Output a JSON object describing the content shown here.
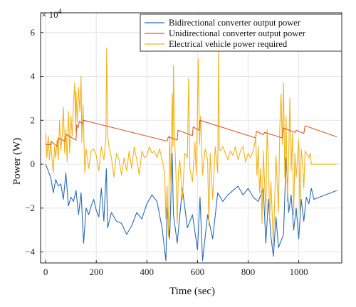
{
  "chart_data": {
    "type": "line",
    "title": "",
    "xlabel": "Time (sec)",
    "ylabel": "Power (W)",
    "y_multiplier": "× 10",
    "y_multiplier_exp": "4",
    "xlim": [
      -20,
      1170
    ],
    "ylim": [
      -4.5,
      6.9
    ],
    "y_scale_factor": 10000,
    "xticks": [
      0,
      200,
      400,
      600,
      800,
      1000
    ],
    "yticks": [
      -4,
      -2,
      0,
      2,
      4,
      6
    ],
    "grid": true,
    "legend_position": "top-right",
    "series": [
      {
        "name": "Bidirectional converter output power",
        "color": "#2a6bb8",
        "points": [
          [
            0,
            0
          ],
          [
            10,
            -0.3
          ],
          [
            20,
            -0.6
          ],
          [
            30,
            -1.3
          ],
          [
            40,
            -0.7
          ],
          [
            50,
            -1.0
          ],
          [
            60,
            -0.9
          ],
          [
            70,
            -1.6
          ],
          [
            80,
            -0.4
          ],
          [
            90,
            -1.9
          ],
          [
            100,
            -1.5
          ],
          [
            110,
            -1.7
          ],
          [
            120,
            -1.2
          ],
          [
            130,
            -2.3
          ],
          [
            140,
            -1.3
          ],
          [
            150,
            -3.6
          ],
          [
            160,
            -2.0
          ],
          [
            170,
            -2.3
          ],
          [
            180,
            -1.9
          ],
          [
            190,
            -1.6
          ],
          [
            200,
            -2.1
          ],
          [
            210,
            -2.4
          ],
          [
            220,
            -1.1
          ],
          [
            230,
            -2.6
          ],
          [
            240,
            -0.2
          ],
          [
            245,
            -2.9
          ],
          [
            260,
            -2.2
          ],
          [
            280,
            -2.6
          ],
          [
            300,
            -2.7
          ],
          [
            320,
            -3.2
          ],
          [
            340,
            -2.8
          ],
          [
            360,
            -2.2
          ],
          [
            380,
            -2.5
          ],
          [
            400,
            -1.8
          ],
          [
            420,
            -1.4
          ],
          [
            440,
            -1.7
          ],
          [
            460,
            -2.9
          ],
          [
            475,
            -4.4
          ],
          [
            480,
            -2.0
          ],
          [
            490,
            -3.4
          ],
          [
            500,
            0.5
          ],
          [
            505,
            -2.3
          ],
          [
            520,
            -3.6
          ],
          [
            540,
            -1.1
          ],
          [
            560,
            -2.9
          ],
          [
            580,
            -2.3
          ],
          [
            600,
            -3.9
          ],
          [
            610,
            -1.5
          ],
          [
            620,
            -4.4
          ],
          [
            640,
            -2.3
          ],
          [
            660,
            -3.4
          ],
          [
            680,
            -1.3
          ],
          [
            700,
            -1.7
          ],
          [
            720,
            -1.4
          ],
          [
            740,
            -1.2
          ],
          [
            760,
            -1.0
          ],
          [
            780,
            -1.4
          ],
          [
            800,
            -1.1
          ],
          [
            820,
            -1.5
          ],
          [
            840,
            -1.7
          ],
          [
            860,
            -1.1
          ],
          [
            870,
            -3.6
          ],
          [
            880,
            -1.6
          ],
          [
            890,
            -3.3
          ],
          [
            900,
            -4.2
          ],
          [
            910,
            -2.4
          ],
          [
            920,
            -3.8
          ],
          [
            940,
            -3.2
          ],
          [
            950,
            0.3
          ],
          [
            960,
            -2.2
          ],
          [
            970,
            -1.4
          ],
          [
            980,
            -3.0
          ],
          [
            990,
            -2.0
          ],
          [
            1000,
            -3.4
          ],
          [
            1010,
            -1.6
          ],
          [
            1020,
            -2.6
          ],
          [
            1030,
            -1.5
          ],
          [
            1040,
            -1.8
          ],
          [
            1050,
            -1.1
          ],
          [
            1060,
            -1.6
          ],
          [
            1150,
            -1.2
          ]
        ]
      },
      {
        "name": "Unidirectional converter output power",
        "color": "#d95a2a",
        "points": [
          [
            0,
            0.9
          ],
          [
            22,
            0.9
          ],
          [
            22,
            1.05
          ],
          [
            45,
            0.8
          ],
          [
            50,
            1.2
          ],
          [
            75,
            1.05
          ],
          [
            82,
            1.35
          ],
          [
            120,
            1.1
          ],
          [
            123,
            1.8
          ],
          [
            128,
            1.65
          ],
          [
            133,
            1.95
          ],
          [
            145,
            1.85
          ],
          [
            150,
            2.0
          ],
          [
            480,
            1.05
          ],
          [
            485,
            1.25
          ],
          [
            520,
            1.1
          ],
          [
            523,
            1.55
          ],
          [
            580,
            1.3
          ],
          [
            583,
            1.7
          ],
          [
            605,
            1.55
          ],
          [
            610,
            2.0
          ],
          [
            830,
            1.2
          ],
          [
            833,
            1.5
          ],
          [
            860,
            1.35
          ],
          [
            865,
            1.45
          ],
          [
            935,
            1.2
          ],
          [
            940,
            1.65
          ],
          [
            985,
            1.45
          ],
          [
            990,
            1.55
          ],
          [
            1020,
            1.4
          ],
          [
            1025,
            1.75
          ],
          [
            1150,
            1.25
          ]
        ]
      },
      {
        "name": "Electrical vehicle power required",
        "color": "#f2b21a",
        "points": [
          [
            0,
            1.4
          ],
          [
            5,
            0.3
          ],
          [
            10,
            1.3
          ],
          [
            15,
            0.2
          ],
          [
            20,
            1.0
          ],
          [
            25,
            0.3
          ],
          [
            30,
            -0.4
          ],
          [
            35,
            0.8
          ],
          [
            40,
            0.3
          ],
          [
            45,
            1.1
          ],
          [
            50,
            0.2
          ],
          [
            55,
            2.0
          ],
          [
            60,
            0.6
          ],
          [
            65,
            1.3
          ],
          [
            70,
            2.6
          ],
          [
            75,
            0.5
          ],
          [
            80,
            1.6
          ],
          [
            85,
            0.1
          ],
          [
            90,
            2.4
          ],
          [
            95,
            0.5
          ],
          [
            100,
            2.2
          ],
          [
            105,
            1.3
          ],
          [
            110,
            2.8
          ],
          [
            115,
            3.7
          ],
          [
            118,
            1.5
          ],
          [
            120,
            3.3
          ],
          [
            125,
            1.9
          ],
          [
            130,
            3.5
          ],
          [
            135,
            2.4
          ],
          [
            140,
            4.0
          ],
          [
            143,
            1.0
          ],
          [
            148,
            2.7
          ],
          [
            152,
            0.8
          ],
          [
            155,
            -0.4
          ],
          [
            160,
            0.7
          ],
          [
            170,
            -0.2
          ],
          [
            180,
            0.6
          ],
          [
            190,
            0.7
          ],
          [
            200,
            0.4
          ],
          [
            210,
            -0.3
          ],
          [
            220,
            0.8
          ],
          [
            230,
            0.2
          ],
          [
            238,
            1.2
          ],
          [
            241,
            5.3
          ],
          [
            245,
            1.3
          ],
          [
            250,
            0.8
          ],
          [
            260,
            0.3
          ],
          [
            270,
            -0.6
          ],
          [
            280,
            0.5
          ],
          [
            290,
            0.2
          ],
          [
            300,
            -0.5
          ],
          [
            310,
            0.3
          ],
          [
            320,
            -0.3
          ],
          [
            330,
            0.6
          ],
          [
            340,
            -0.2
          ],
          [
            350,
            0.8
          ],
          [
            360,
            0.2
          ],
          [
            370,
            -0.5
          ],
          [
            380,
            0.6
          ],
          [
            390,
            0.3
          ],
          [
            400,
            0.4
          ],
          [
            410,
            0.8
          ],
          [
            420,
            0.5
          ],
          [
            430,
            0.6
          ],
          [
            440,
            0.3
          ],
          [
            450,
            0.7
          ],
          [
            460,
            0.2
          ],
          [
            470,
            -0.4
          ],
          [
            475,
            -2.5
          ],
          [
            480,
            -1.0
          ],
          [
            485,
            -3.3
          ],
          [
            490,
            1.3
          ],
          [
            495,
            -1.1
          ],
          [
            500,
            3.2
          ],
          [
            503,
            0.8
          ],
          [
            505,
            4.5
          ],
          [
            510,
            1.0
          ],
          [
            515,
            -0.5
          ],
          [
            520,
            -2.7
          ],
          [
            525,
            -0.3
          ],
          [
            530,
            0.2
          ],
          [
            540,
            -1.6
          ],
          [
            550,
            0.5
          ],
          [
            560,
            0.3
          ],
          [
            565,
            3.9
          ],
          [
            570,
            -0.2
          ],
          [
            580,
            -0.8
          ],
          [
            590,
            1.0
          ],
          [
            595,
            -0.5
          ],
          [
            600,
            2.6
          ],
          [
            603,
            4.8
          ],
          [
            608,
            0.9
          ],
          [
            612,
            2.2
          ],
          [
            620,
            -0.5
          ],
          [
            630,
            0.7
          ],
          [
            640,
            0.2
          ],
          [
            645,
            -2.8
          ],
          [
            650,
            0.5
          ],
          [
            660,
            -1.6
          ],
          [
            670,
            0.8
          ],
          [
            680,
            -0.4
          ],
          [
            683,
            5.2
          ],
          [
            686,
            0.7
          ],
          [
            690,
            0.6
          ],
          [
            700,
            0.8
          ],
          [
            710,
            0.5
          ],
          [
            720,
            0.2
          ],
          [
            730,
            0.6
          ],
          [
            740,
            0.4
          ],
          [
            750,
            0.8
          ],
          [
            760,
            0.2
          ],
          [
            770,
            0.6
          ],
          [
            780,
            0.8
          ],
          [
            790,
            0.1
          ],
          [
            800,
            0.5
          ],
          [
            810,
            0.3
          ],
          [
            820,
            0.6
          ],
          [
            830,
            1.2
          ],
          [
            835,
            -0.5
          ],
          [
            840,
            0.8
          ],
          [
            845,
            -1.3
          ],
          [
            850,
            -0.2
          ],
          [
            855,
            -2.7
          ],
          [
            860,
            0.6
          ],
          [
            870,
            -2.3
          ],
          [
            875,
            1.6
          ],
          [
            880,
            0.3
          ],
          [
            885,
            -2.5
          ],
          [
            890,
            -0.8
          ],
          [
            900,
            -3.7
          ],
          [
            910,
            0.4
          ],
          [
            920,
            -2.2
          ],
          [
            925,
            1.6
          ],
          [
            930,
            3.2
          ],
          [
            935,
            0.9
          ],
          [
            940,
            3.7
          ],
          [
            945,
            -0.6
          ],
          [
            950,
            2.2
          ],
          [
            955,
            -1.7
          ],
          [
            960,
            0.3
          ],
          [
            965,
            3.0
          ],
          [
            970,
            -0.3
          ],
          [
            975,
            1.4
          ],
          [
            980,
            -2.3
          ],
          [
            985,
            0.5
          ],
          [
            990,
            -0.6
          ],
          [
            1000,
            1.1
          ],
          [
            1005,
            -2.2
          ],
          [
            1010,
            0.7
          ],
          [
            1015,
            0.1
          ],
          [
            1020,
            -1.1
          ],
          [
            1025,
            0.6
          ],
          [
            1030,
            0.5
          ],
          [
            1040,
            0.3
          ],
          [
            1045,
            0.5
          ],
          [
            1050,
            0
          ],
          [
            1150,
            0
          ]
        ]
      }
    ]
  }
}
